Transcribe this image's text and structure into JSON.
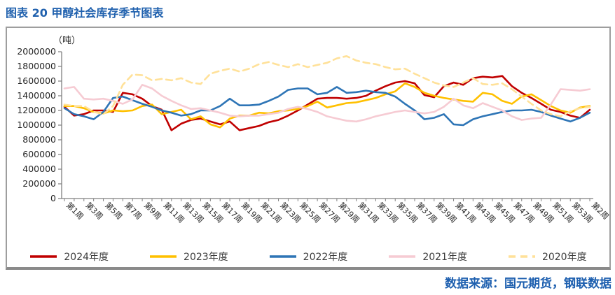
{
  "title": "图表 20  甲醇社会库存季节图表",
  "source": "数据来源：国元期货，钢联数据",
  "colors": {
    "title_blue": "#2061AE",
    "source_blue": "#1D5FAF",
    "axis_gray": "#7F7F7F",
    "frame_gray": "#9E9E9E",
    "tick_label": "#262626"
  },
  "chart_data": {
    "type": "line",
    "title": "甲醇社会库存季节图表",
    "unit_label": "（吨）",
    "xlabel": "",
    "ylabel": "吨",
    "ylim": [
      0,
      2000000
    ],
    "y_tick_step": 200000,
    "grid": false,
    "legend_position": "bottom",
    "y_tick_labels": [
      "2000000",
      "1800000",
      "1600000",
      "1400000",
      "1200000",
      "1000000",
      "800000",
      "600000",
      "400000",
      "200000",
      "0"
    ],
    "x_tick_labels": [
      "第1周",
      "第3周",
      "第5周",
      "第7周",
      "第9周",
      "第11周",
      "第13周",
      "第15周",
      "第17周",
      "第19周",
      "第21周",
      "第23周",
      "第25周",
      "第27周",
      "第29周",
      "第31周",
      "第33周",
      "第35周",
      "第37周",
      "第39周",
      "第41周",
      "第43周",
      "第45周",
      "第47周",
      "第49周",
      "第51周",
      "第53周",
      "第2周"
    ],
    "x_label_interval": 2,
    "n_points": 55,
    "series": [
      {
        "name": "2024年度",
        "color": "#C00000",
        "dash": false,
        "values": [
          1250000,
          1130000,
          1150000,
          1200000,
          1200000,
          1180000,
          1440000,
          1420000,
          1360000,
          1260000,
          1210000,
          930000,
          1020000,
          1070000,
          1090000,
          1050000,
          1010000,
          1050000,
          930000,
          960000,
          990000,
          1040000,
          1070000,
          1130000,
          1200000,
          1280000,
          1360000,
          1370000,
          1370000,
          1360000,
          1370000,
          1400000,
          1470000,
          1530000,
          1580000,
          1600000,
          1570000,
          1410000,
          1380000,
          1530000,
          1580000,
          1550000,
          1640000,
          1660000,
          1650000,
          1670000,
          1530000,
          1440000,
          1370000,
          1290000,
          1210000,
          1180000,
          1130000,
          1100000,
          1210000
        ]
      },
      {
        "name": "2023年度",
        "color": "#FFC000",
        "dash": false,
        "values": [
          1260000,
          1260000,
          1230000,
          1180000,
          1160000,
          1200000,
          1190000,
          1200000,
          1260000,
          1280000,
          1150000,
          1180000,
          1210000,
          1080000,
          1120000,
          1010000,
          970000,
          1090000,
          1130000,
          1130000,
          1170000,
          1160000,
          1190000,
          1200000,
          1220000,
          1260000,
          1320000,
          1240000,
          1270000,
          1300000,
          1310000,
          1340000,
          1370000,
          1420000,
          1460000,
          1570000,
          1520000,
          1440000,
          1400000,
          1370000,
          1350000,
          1330000,
          1320000,
          1440000,
          1420000,
          1330000,
          1290000,
          1390000,
          1420000,
          1340000,
          1260000,
          1200000,
          1170000,
          1240000,
          1260000
        ]
      },
      {
        "name": "2022年度",
        "color": "#2E75B6",
        "dash": false,
        "values": [
          1230000,
          1150000,
          1120000,
          1080000,
          1180000,
          1370000,
          1390000,
          1340000,
          1290000,
          1250000,
          1200000,
          1170000,
          1130000,
          1150000,
          1200000,
          1200000,
          1260000,
          1360000,
          1270000,
          1270000,
          1280000,
          1330000,
          1390000,
          1480000,
          1500000,
          1500000,
          1420000,
          1440000,
          1520000,
          1440000,
          1450000,
          1470000,
          1450000,
          1440000,
          1390000,
          1290000,
          1200000,
          1080000,
          1100000,
          1150000,
          1010000,
          1000000,
          1080000,
          1120000,
          1150000,
          1180000,
          1200000,
          1200000,
          1210000,
          1180000,
          1130000,
          1090000,
          1050000,
          1100000,
          1170000
        ]
      },
      {
        "name": "2021年度",
        "color": "#F6CBD3",
        "dash": false,
        "values": [
          1500000,
          1520000,
          1360000,
          1350000,
          1360000,
          1330000,
          1290000,
          1350000,
          1550000,
          1500000,
          1400000,
          1330000,
          1270000,
          1220000,
          1230000,
          1200000,
          1170000,
          1130000,
          1120000,
          1130000,
          1130000,
          1150000,
          1170000,
          1220000,
          1250000,
          1220000,
          1180000,
          1120000,
          1090000,
          1060000,
          1050000,
          1080000,
          1120000,
          1150000,
          1180000,
          1200000,
          1180000,
          1160000,
          1180000,
          1250000,
          1360000,
          1270000,
          1230000,
          1300000,
          1250000,
          1200000,
          1120000,
          1070000,
          1090000,
          1100000,
          1280000,
          1490000,
          1480000,
          1470000,
          1490000
        ]
      },
      {
        "name": "2020年度",
        "color": "#FFE199",
        "dash": true,
        "values": [
          1280000,
          1260000,
          1260000,
          1180000,
          1150000,
          1260000,
          1550000,
          1690000,
          1680000,
          1610000,
          1630000,
          1610000,
          1640000,
          1580000,
          1560000,
          1700000,
          1740000,
          1770000,
          1730000,
          1770000,
          1830000,
          1860000,
          1820000,
          1790000,
          1830000,
          1790000,
          1820000,
          1850000,
          1910000,
          1940000,
          1880000,
          1850000,
          1830000,
          1790000,
          1760000,
          1770000,
          1700000,
          1640000,
          1580000,
          1540000,
          1520000,
          1580000,
          1640000,
          1560000,
          1550000,
          1570000,
          1490000,
          1390000,
          1290000,
          1200000,
          1150000,
          1120000,
          1190000,
          1230000,
          1250000
        ]
      }
    ]
  }
}
